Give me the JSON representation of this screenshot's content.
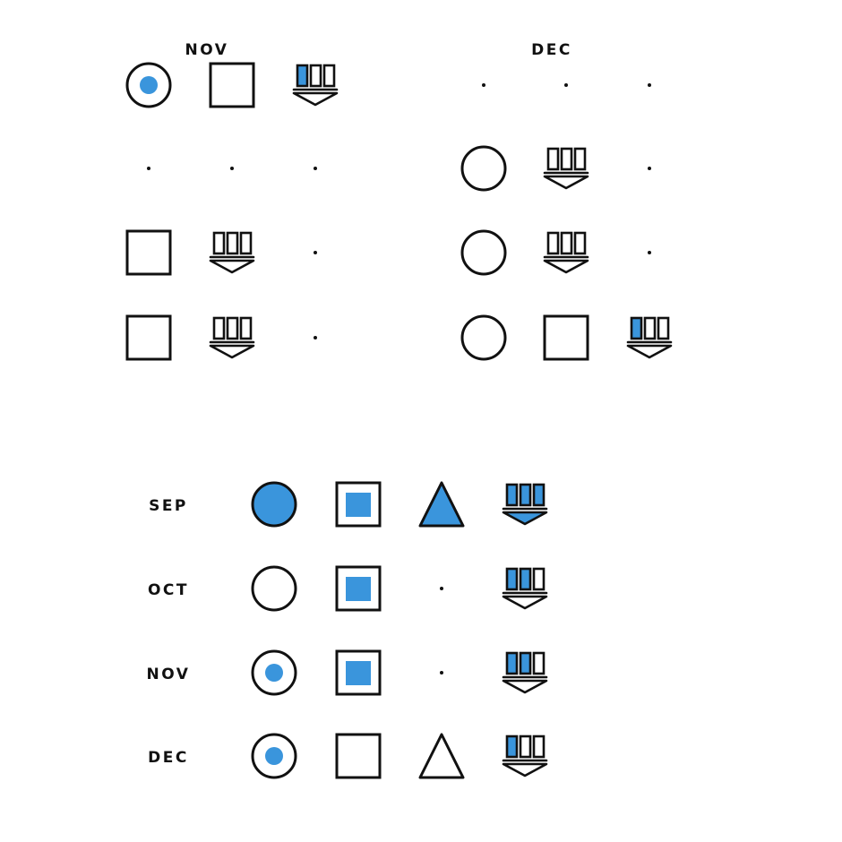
{
  "colors": {
    "ink": "#111111",
    "fill": "#3a95dc",
    "bg": "#ffffff"
  },
  "top_section": {
    "nov_label": "NOV",
    "dec_label": "DEC",
    "nov_rows": [
      [
        "circle-dot",
        "square",
        "bars-first"
      ],
      [
        "dot",
        "dot",
        "dot"
      ],
      [
        "square",
        "bars-empty",
        "dot"
      ],
      [
        "square",
        "bars-empty",
        "dot"
      ]
    ],
    "dec_rows": [
      [
        "dot",
        "dot",
        "dot"
      ],
      [
        "circle",
        "bars-empty",
        "dot"
      ],
      [
        "circle",
        "bars-empty",
        "dot"
      ],
      [
        "circle",
        "square",
        "bars-first"
      ]
    ]
  },
  "bottom_section": {
    "rows": [
      {
        "label": "SEP",
        "cells": [
          "circle-filled",
          "square-filled",
          "triangle-filled",
          "bars-full"
        ]
      },
      {
        "label": "OCT",
        "cells": [
          "circle",
          "square-filled",
          "dot",
          "bars-two"
        ]
      },
      {
        "label": "NOV",
        "cells": [
          "circle-dot",
          "square-filled",
          "dot",
          "bars-two"
        ]
      },
      {
        "label": "DEC",
        "cells": [
          "circle-dot",
          "square",
          "triangle",
          "bars-first"
        ]
      }
    ]
  }
}
